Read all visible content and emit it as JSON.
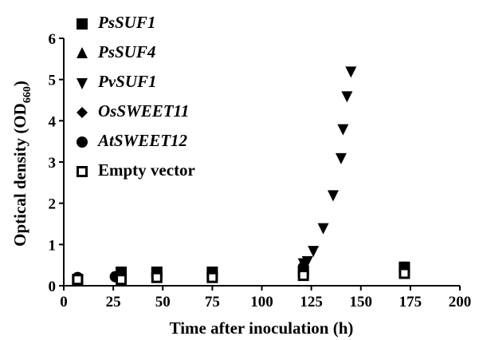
{
  "chart_data": {
    "type": "scatter",
    "xlabel": "Time after inoculation (h)",
    "ylabel": {
      "text": "Optical density (OD",
      "sub": "660",
      "end": ")"
    },
    "xlim": [
      0,
      200
    ],
    "xticks": [
      0,
      25,
      50,
      75,
      100,
      125,
      150,
      175,
      200
    ],
    "ylim": [
      0,
      6
    ],
    "yticks": [
      0,
      1,
      2,
      3,
      4,
      5,
      6
    ],
    "legend": "upper left",
    "series": [
      {
        "name": "PsSUF1",
        "italic": true,
        "marker": "square",
        "color": "#000000",
        "x": [
          7,
          29,
          47,
          75,
          121,
          172
        ],
        "values": [
          0.15,
          0.33,
          0.33,
          0.33,
          0.35,
          0.45
        ]
      },
      {
        "name": "PsSUF4",
        "italic": true,
        "marker": "triangle-up",
        "color": "#000000",
        "x": [
          7,
          28,
          47,
          75,
          121,
          172
        ],
        "values": [
          0.18,
          0.2,
          0.25,
          0.3,
          0.5,
          0.4
        ]
      },
      {
        "name": "PvSUF1",
        "italic": true,
        "marker": "triangle-down",
        "color": "#000000",
        "x": [
          7,
          27,
          47,
          75,
          121,
          123,
          126,
          131,
          136,
          140,
          141,
          143,
          145
        ],
        "values": [
          0.17,
          0.2,
          0.25,
          0.3,
          0.55,
          0.6,
          0.85,
          1.4,
          2.2,
          3.1,
          3.8,
          4.6,
          5.2
        ]
      },
      {
        "name": "OsSWEET11",
        "italic": true,
        "marker": "diamond",
        "color": "#000000",
        "x": [
          7,
          27,
          47,
          75,
          121,
          172
        ],
        "values": [
          0.15,
          0.2,
          0.25,
          0.3,
          0.4,
          0.4
        ]
      },
      {
        "name": "AtSWEET12",
        "italic": true,
        "marker": "circle",
        "color": "#000000",
        "x": [
          7,
          26,
          47,
          75,
          121,
          172
        ],
        "values": [
          0.2,
          0.22,
          0.28,
          0.32,
          0.45,
          0.45
        ]
      },
      {
        "name": "Empty vector",
        "italic": false,
        "marker": "open-square",
        "color": "#000000",
        "x": [
          7,
          29,
          47,
          75,
          121,
          172
        ],
        "values": [
          0.15,
          0.15,
          0.2,
          0.2,
          0.25,
          0.3
        ]
      }
    ]
  }
}
